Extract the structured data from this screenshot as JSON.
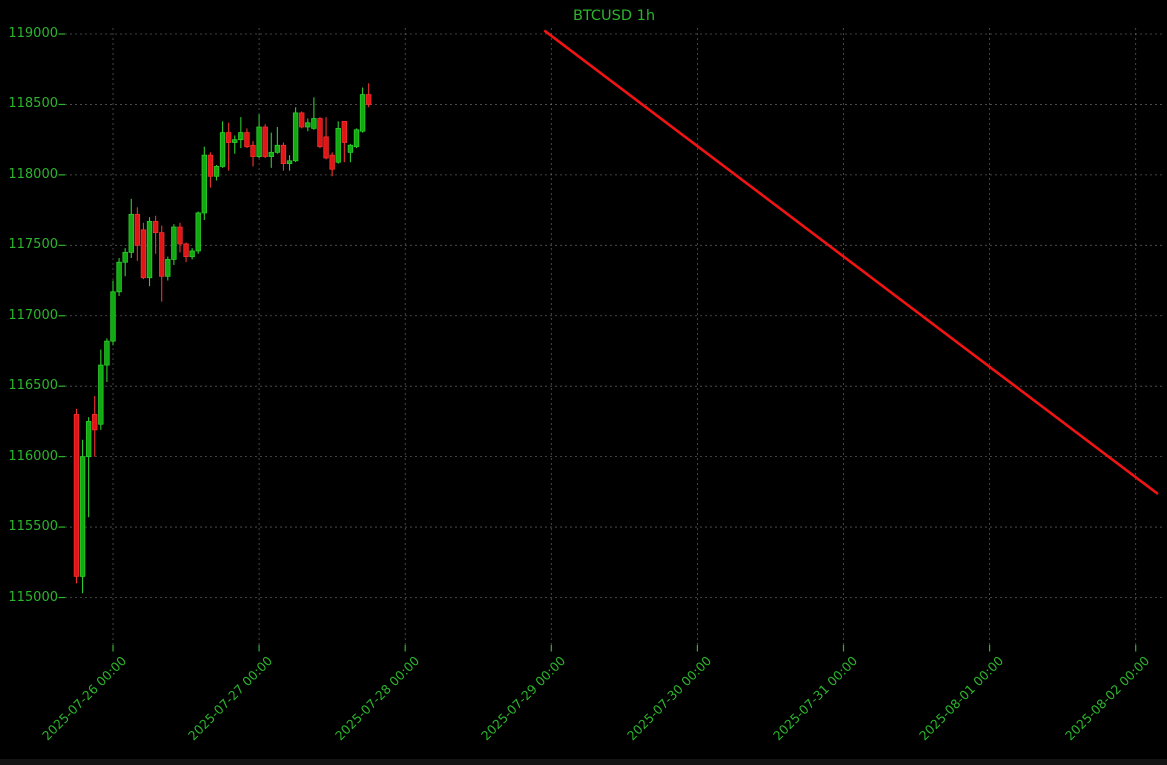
{
  "window": {
    "background": "#000000"
  },
  "chart_data": {
    "type": "candlestick",
    "title": "BTCUSD 1h",
    "symbol": "BTCUSD",
    "interval": "1h",
    "grid": true,
    "legend_position": "none",
    "y_axis": {
      "min": 114700,
      "max": 119050,
      "tick_step": 500,
      "ticks": [
        119000,
        118500,
        118000,
        117500,
        117000,
        116500,
        116000,
        115500,
        115000
      ]
    },
    "x_axis": {
      "tick_labels": [
        "2025-07-26 00:00",
        "2025-07-27 00:00",
        "2025-07-28 00:00",
        "2025-07-29 00:00",
        "2025-07-30 00:00",
        "2025-07-31 00:00",
        "2025-08-01 00:00",
        "2025-08-02 00:00"
      ]
    },
    "candle_columns": [
      "time",
      "open",
      "high",
      "low",
      "close"
    ],
    "candles": [
      [
        "2025-07-25 18:00",
        116300,
        116340,
        115100,
        115150
      ],
      [
        "2025-07-25 19:00",
        115150,
        116120,
        115030,
        116000
      ],
      [
        "2025-07-25 20:00",
        116000,
        116280,
        115570,
        116250
      ],
      [
        "2025-07-25 21:00",
        116300,
        116430,
        116000,
        116190
      ],
      [
        "2025-07-25 22:00",
        116230,
        116760,
        116190,
        116650
      ],
      [
        "2025-07-25 23:00",
        116650,
        116840,
        116530,
        116820
      ],
      [
        "2025-07-26 00:00",
        116820,
        117250,
        116790,
        117170
      ],
      [
        "2025-07-26 01:00",
        117170,
        117410,
        117140,
        117380
      ],
      [
        "2025-07-26 02:00",
        117380,
        117480,
        117280,
        117450
      ],
      [
        "2025-07-26 03:00",
        117450,
        117830,
        117410,
        117720
      ],
      [
        "2025-07-26 04:00",
        117720,
        117770,
        117390,
        117500
      ],
      [
        "2025-07-26 05:00",
        117610,
        117660,
        117260,
        117270
      ],
      [
        "2025-07-26 06:00",
        117270,
        117700,
        117210,
        117670
      ],
      [
        "2025-07-26 07:00",
        117670,
        117710,
        117440,
        117590
      ],
      [
        "2025-07-26 08:00",
        117590,
        117640,
        117100,
        117280
      ],
      [
        "2025-07-26 09:00",
        117280,
        117420,
        117250,
        117400
      ],
      [
        "2025-07-26 10:00",
        117400,
        117650,
        117360,
        117630
      ],
      [
        "2025-07-26 11:00",
        117630,
        117660,
        117450,
        117510
      ],
      [
        "2025-07-26 12:00",
        117510,
        117520,
        117380,
        117420
      ],
      [
        "2025-07-26 13:00",
        117420,
        117480,
        117400,
        117460
      ],
      [
        "2025-07-26 14:00",
        117460,
        117740,
        117440,
        117730
      ],
      [
        "2025-07-26 15:00",
        117730,
        118200,
        117680,
        118140
      ],
      [
        "2025-07-26 16:00",
        118140,
        118160,
        117910,
        117990
      ],
      [
        "2025-07-26 17:00",
        117990,
        118070,
        117960,
        118060
      ],
      [
        "2025-07-26 18:00",
        118060,
        118380,
        118050,
        118300
      ],
      [
        "2025-07-26 19:00",
        118300,
        118370,
        118030,
        118230
      ],
      [
        "2025-07-26 20:00",
        118230,
        118280,
        118150,
        118250
      ],
      [
        "2025-07-26 21:00",
        118250,
        118410,
        118190,
        118300
      ],
      [
        "2025-07-26 22:00",
        118300,
        118330,
        118190,
        118200
      ],
      [
        "2025-07-26 23:00",
        118210,
        118240,
        118060,
        118130
      ],
      [
        "2025-07-27 00:00",
        118130,
        118430,
        118120,
        118340
      ],
      [
        "2025-07-27 01:00",
        118340,
        118360,
        118120,
        118130
      ],
      [
        "2025-07-27 02:00",
        118130,
        118300,
        118050,
        118160
      ],
      [
        "2025-07-27 03:00",
        118160,
        118340,
        118150,
        118210
      ],
      [
        "2025-07-27 04:00",
        118210,
        118230,
        118030,
        118080
      ],
      [
        "2025-07-27 05:00",
        118080,
        118140,
        118030,
        118100
      ],
      [
        "2025-07-27 06:00",
        118100,
        118480,
        118090,
        118440
      ],
      [
        "2025-07-27 07:00",
        118440,
        118450,
        118330,
        118340
      ],
      [
        "2025-07-27 08:00",
        118340,
        118400,
        118310,
        118370
      ],
      [
        "2025-07-27 09:00",
        118330,
        118550,
        118320,
        118400
      ],
      [
        "2025-07-27 10:00",
        118400,
        118410,
        118190,
        118200
      ],
      [
        "2025-07-27 11:00",
        118270,
        118410,
        118110,
        118120
      ],
      [
        "2025-07-27 12:00",
        118140,
        118160,
        117990,
        118040
      ],
      [
        "2025-07-27 13:00",
        118090,
        118380,
        118080,
        118330
      ],
      [
        "2025-07-27 14:00",
        118380,
        118380,
        118090,
        118230
      ],
      [
        "2025-07-27 15:00",
        118160,
        118220,
        118090,
        118210
      ],
      [
        "2025-07-27 16:00",
        118200,
        118330,
        118190,
        118320
      ],
      [
        "2025-07-27 17:00",
        118310,
        118620,
        118300,
        118570
      ],
      [
        "2025-07-27 18:00",
        118570,
        118650,
        118480,
        118500
      ]
    ],
    "trend_line": {
      "from": {
        "time": "2025-07-28 23:00",
        "price": 119020
      },
      "to": {
        "time": "2025-08-02 03:30",
        "price": 115740
      }
    },
    "colors": {
      "background": "#000000",
      "text": "#2cb52c",
      "grid": "#8f8f8f",
      "up": "#11a811",
      "up_edge": "#2ecc2e",
      "down": "#e01515",
      "down_edge": "#f13131",
      "trend": "#f01414"
    }
  }
}
